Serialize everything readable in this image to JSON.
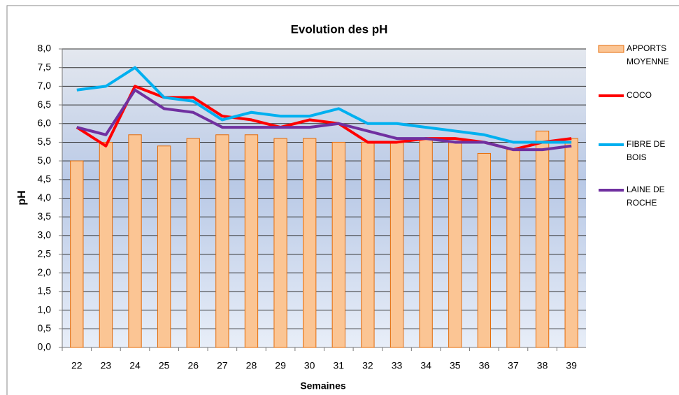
{
  "chart_data": {
    "type": "bar",
    "title": "Evolution des pH",
    "x_label": "Semaines",
    "y_label": "pH",
    "categories": [
      "22",
      "23",
      "24",
      "25",
      "26",
      "27",
      "28",
      "29",
      "30",
      "31",
      "32",
      "33",
      "34",
      "35",
      "36",
      "37",
      "38",
      "39"
    ],
    "series": [
      {
        "name": "APPORTS MOYENNE",
        "type": "bar",
        "color": "#fbc594",
        "stroke": "#e46c0a",
        "values": [
          5.0,
          5.5,
          5.7,
          5.4,
          5.6,
          5.7,
          5.7,
          5.6,
          5.6,
          5.5,
          5.5,
          5.5,
          5.6,
          5.5,
          5.2,
          5.3,
          5.8,
          5.6
        ]
      },
      {
        "name": "COCO",
        "type": "line",
        "color": "#ff0000",
        "values": [
          5.9,
          5.4,
          7.0,
          6.7,
          6.7,
          6.2,
          6.1,
          5.9,
          6.1,
          6.0,
          5.5,
          5.5,
          5.6,
          5.6,
          5.5,
          5.3,
          5.5,
          5.6
        ]
      },
      {
        "name": "FIBRE DE BOIS",
        "type": "line",
        "color": "#00b0f0",
        "values": [
          6.9,
          7.0,
          7.5,
          6.7,
          6.6,
          6.1,
          6.3,
          6.2,
          6.2,
          6.4,
          6.0,
          6.0,
          5.9,
          5.8,
          5.7,
          5.5,
          5.5,
          5.5
        ]
      },
      {
        "name": "LAINE DE ROCHE",
        "type": "line",
        "color": "#7030a0",
        "values": [
          5.9,
          5.7,
          6.9,
          6.4,
          6.3,
          5.9,
          5.9,
          5.9,
          5.9,
          6.0,
          5.8,
          5.6,
          5.6,
          5.5,
          5.5,
          5.3,
          5.3,
          5.4
        ]
      }
    ],
    "ylim": [
      0,
      8
    ],
    "yticks": [
      {
        "value": 0,
        "label": "0,0"
      },
      {
        "value": 0.5,
        "label": "0,5"
      },
      {
        "value": 1,
        "label": "1,0"
      },
      {
        "value": 1.5,
        "label": "1,5"
      },
      {
        "value": 2,
        "label": "2,0"
      },
      {
        "value": 2.5,
        "label": "2,5"
      },
      {
        "value": 3,
        "label": "3,0"
      },
      {
        "value": 3.5,
        "label": "3,5"
      },
      {
        "value": 4,
        "label": "4,0"
      },
      {
        "value": 4.5,
        "label": "4,5"
      },
      {
        "value": 5,
        "label": "5,0"
      },
      {
        "value": 5.5,
        "label": "5,5"
      },
      {
        "value": 6,
        "label": "6,0"
      },
      {
        "value": 6.5,
        "label": "6,5"
      },
      {
        "value": 7,
        "label": "7,0"
      },
      {
        "value": 7.5,
        "label": "7,5"
      },
      {
        "value": 8,
        "label": "8,0"
      }
    ],
    "grid": true,
    "legend": "right"
  }
}
